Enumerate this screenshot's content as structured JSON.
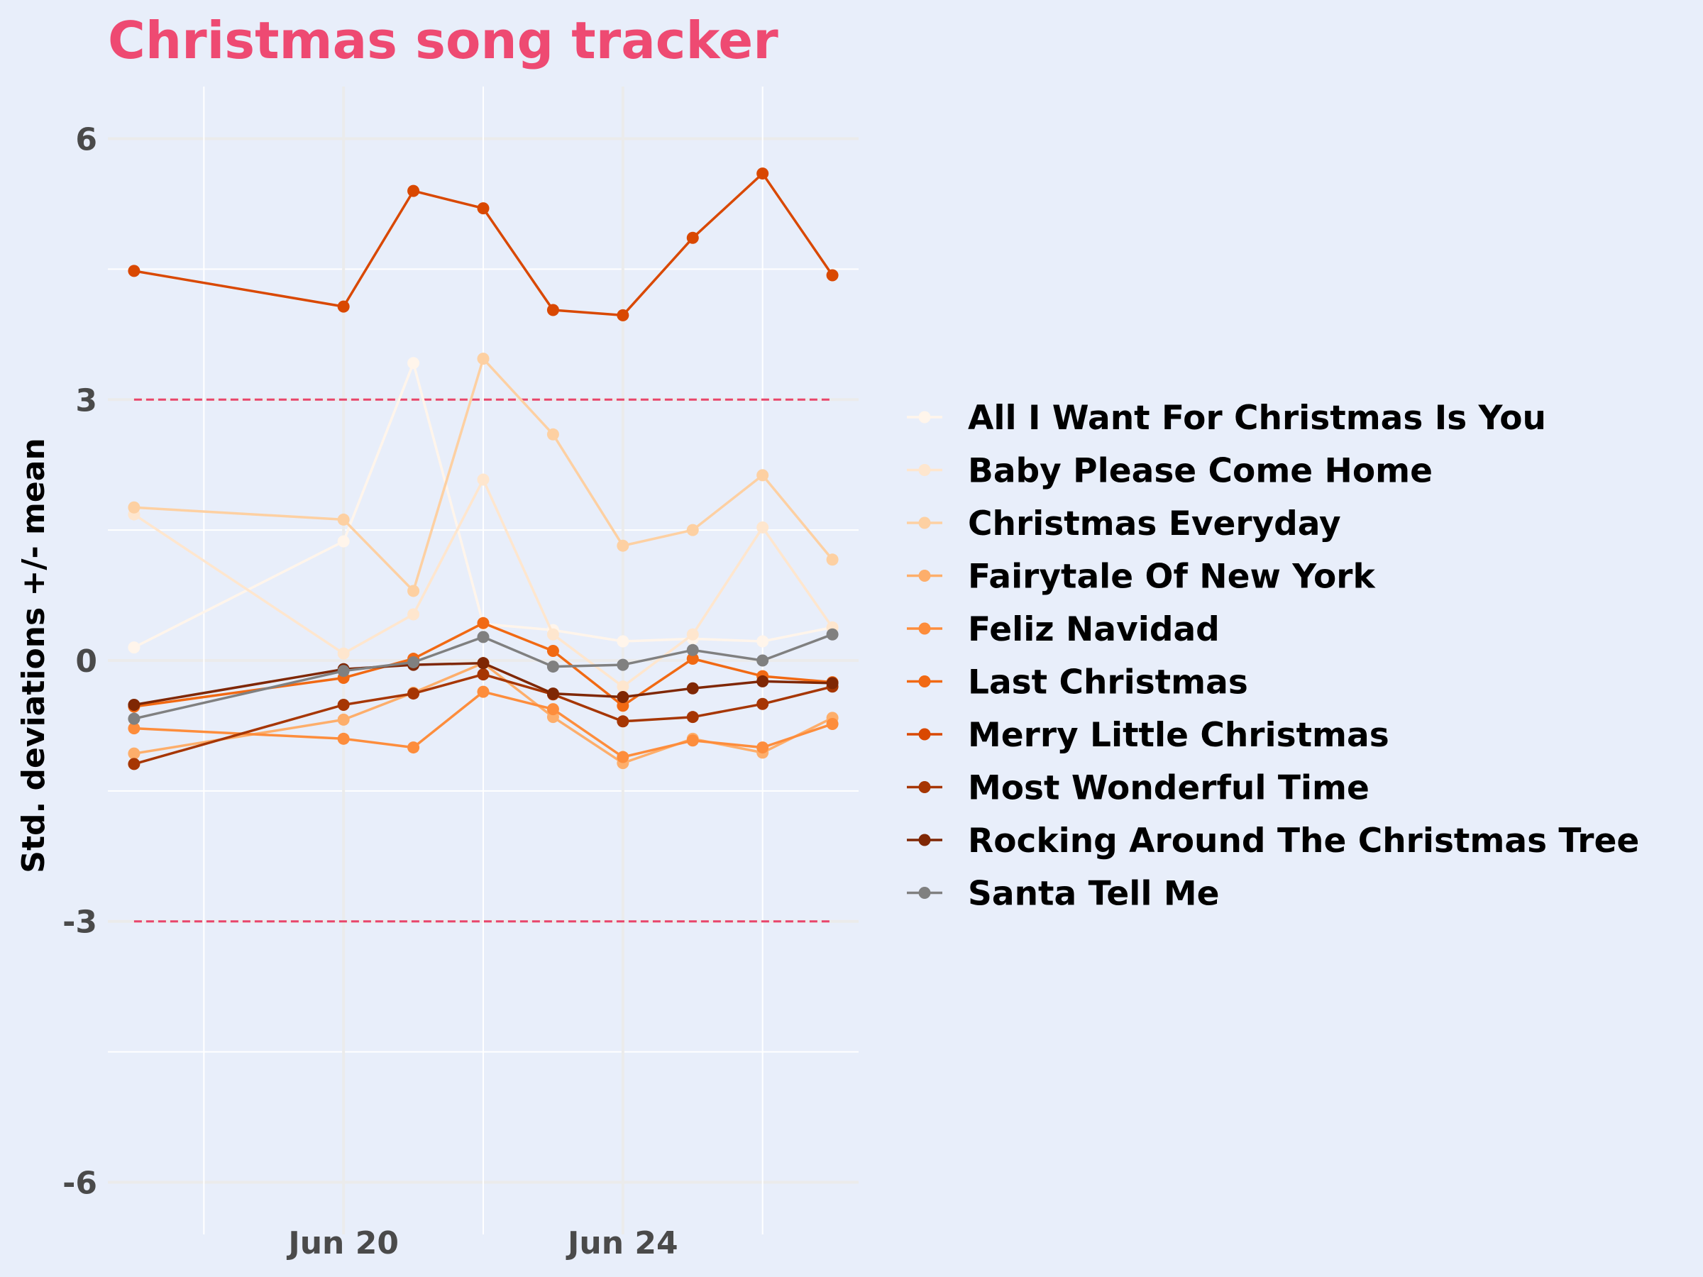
{
  "chart_data": {
    "type": "line",
    "title": "Christmas song tracker",
    "ylabel": "Std. deviations +/- mean",
    "xlabel": "",
    "ylim": [
      -6.6,
      6.6
    ],
    "y_ticks": [
      6,
      3,
      0,
      -3,
      -6
    ],
    "y_tick_labels": [
      "6",
      "3",
      "0",
      "-3",
      "-6"
    ],
    "x_ticks": [
      "2019-06-20",
      "2019-06-24"
    ],
    "x_tick_labels": [
      "Jun 20",
      "Jun 24"
    ],
    "xlim": [
      "2019-06-16T15:00",
      "2019-06-27T09:00"
    ],
    "x": [
      "2019-06-17",
      "2019-06-20",
      "2019-06-21",
      "2019-06-22",
      "2019-06-23",
      "2019-06-24",
      "2019-06-25",
      "2019-06-26",
      "2019-06-27"
    ],
    "reference_lines": [
      {
        "y": 3,
        "style": "dashed",
        "color": "#e8456c"
      },
      {
        "y": -3,
        "style": "dashed",
        "color": "#e8456c"
      }
    ],
    "grid": true,
    "legend_position": "right",
    "series": [
      {
        "name": "All I Want For Christmas Is You",
        "color": "#fff5eb",
        "values": [
          0.15,
          1.37,
          3.42,
          0.42,
          0.35,
          0.22,
          0.25,
          0.22,
          0.38
        ]
      },
      {
        "name": "Baby Please Come Home",
        "color": "#fee6ce",
        "values": [
          1.68,
          0.08,
          0.53,
          2.08,
          0.3,
          -0.3,
          0.3,
          1.53,
          0.38
        ]
      },
      {
        "name": "Christmas Everyday",
        "color": "#fdd0a2",
        "values": [
          1.76,
          1.62,
          0.8,
          3.47,
          2.6,
          1.32,
          1.5,
          2.13,
          1.16
        ]
      },
      {
        "name": "Fairytale Of New York",
        "color": "#fdae6b",
        "values": [
          -1.07,
          -0.68,
          -0.37,
          -0.03,
          -0.65,
          -1.18,
          -0.9,
          -1.06,
          -0.66
        ]
      },
      {
        "name": "Feliz Navidad",
        "color": "#fd8d3c",
        "values": [
          -0.78,
          -0.9,
          -1.0,
          -0.36,
          -0.56,
          -1.11,
          -0.92,
          -1.0,
          -0.73
        ]
      },
      {
        "name": "Last Christmas",
        "color": "#f16913",
        "values": [
          -0.53,
          -0.2,
          0.02,
          0.43,
          0.11,
          -0.52,
          0.02,
          -0.18,
          -0.25
        ]
      },
      {
        "name": "Merry Little Christmas",
        "color": "#d94801",
        "values": [
          4.48,
          4.07,
          5.4,
          5.2,
          4.03,
          3.97,
          4.86,
          5.6,
          4.43
        ]
      },
      {
        "name": "Most Wonderful Time",
        "color": "#a63603",
        "values": [
          -1.19,
          -0.51,
          -0.38,
          -0.16,
          -0.39,
          -0.7,
          -0.65,
          -0.5,
          -0.3
        ]
      },
      {
        "name": "Rocking Around The Christmas Tree",
        "color": "#7f2704",
        "values": [
          -0.51,
          -0.1,
          -0.05,
          -0.03,
          -0.38,
          -0.42,
          -0.32,
          -0.24,
          -0.26
        ]
      },
      {
        "name": "Santa Tell Me",
        "color": "#808080",
        "values": [
          -0.67,
          -0.12,
          -0.02,
          0.27,
          -0.07,
          -0.05,
          0.12,
          0.0,
          0.3
        ]
      }
    ]
  }
}
